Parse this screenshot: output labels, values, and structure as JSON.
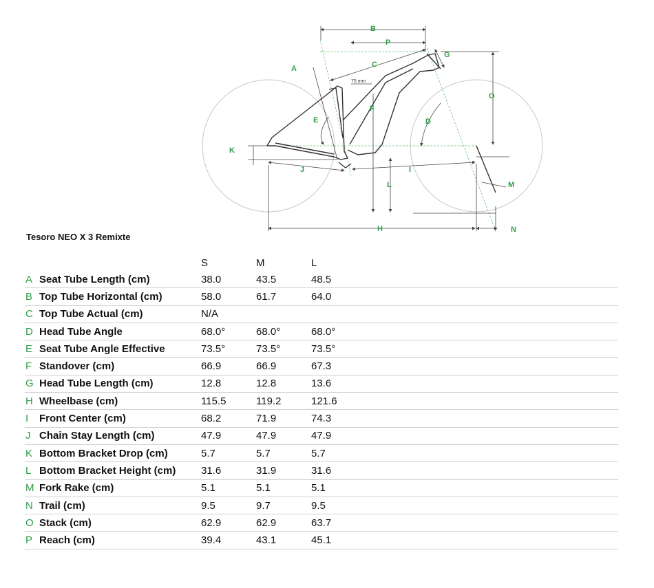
{
  "model": "Tesoro NEO X 3 Remixte",
  "diagram": {
    "letters": [
      "A",
      "B",
      "C",
      "D",
      "E",
      "F",
      "G",
      "H",
      "I",
      "J",
      "K",
      "L",
      "M",
      "N",
      "O",
      "P"
    ],
    "annotation": "75 mm"
  },
  "table": {
    "sizes": [
      "S",
      "M",
      "L"
    ],
    "rows": [
      {
        "letter": "A",
        "label": "Seat Tube Length (cm)",
        "values": [
          "38.0",
          "43.5",
          "48.5"
        ]
      },
      {
        "letter": "B",
        "label": "Top Tube Horizontal (cm)",
        "values": [
          "58.0",
          "61.7",
          "64.0"
        ]
      },
      {
        "letter": "C",
        "label": "Top Tube Actual (cm)",
        "values": [
          "N/A",
          "",
          ""
        ]
      },
      {
        "letter": "D",
        "label": "Head Tube Angle",
        "values": [
          "68.0°",
          "68.0°",
          "68.0°"
        ]
      },
      {
        "letter": "E",
        "label": "Seat Tube Angle Effective",
        "values": [
          "73.5°",
          "73.5°",
          "73.5°"
        ]
      },
      {
        "letter": "F",
        "label": "Standover (cm)",
        "values": [
          "66.9",
          "66.9",
          "67.3"
        ]
      },
      {
        "letter": "G",
        "label": "Head Tube Length (cm)",
        "values": [
          "12.8",
          "12.8",
          "13.6"
        ]
      },
      {
        "letter": "H",
        "label": "Wheelbase (cm)",
        "values": [
          "115.5",
          "119.2",
          "121.6"
        ]
      },
      {
        "letter": "I",
        "label": "Front Center (cm)",
        "values": [
          "68.2",
          "71.9",
          "74.3"
        ]
      },
      {
        "letter": "J",
        "label": "Chain Stay Length (cm)",
        "values": [
          "47.9",
          "47.9",
          "47.9"
        ]
      },
      {
        "letter": "K",
        "label": "Bottom Bracket Drop (cm)",
        "values": [
          "5.7",
          "5.7",
          "5.7"
        ]
      },
      {
        "letter": "L",
        "label": "Bottom Bracket Height (cm)",
        "values": [
          "31.6",
          "31.9",
          "31.6"
        ]
      },
      {
        "letter": "M",
        "label": "Fork Rake (cm)",
        "values": [
          "5.1",
          "5.1",
          "5.1"
        ]
      },
      {
        "letter": "N",
        "label": "Trail (cm)",
        "values": [
          "9.5",
          "9.7",
          "9.5"
        ]
      },
      {
        "letter": "O",
        "label": "Stack (cm)",
        "values": [
          "62.9",
          "62.9",
          "63.7"
        ]
      },
      {
        "letter": "P",
        "label": "Reach (cm)",
        "values": [
          "39.4",
          "43.1",
          "45.1"
        ]
      }
    ]
  }
}
